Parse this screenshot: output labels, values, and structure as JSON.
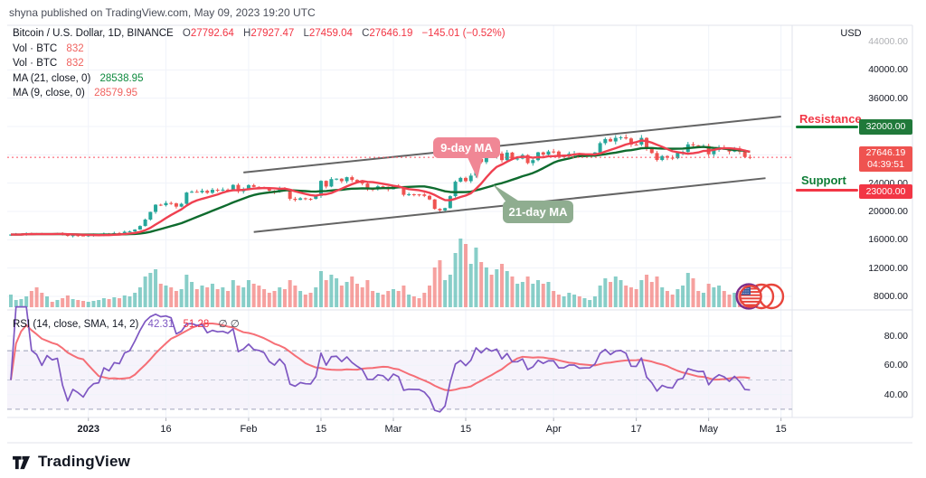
{
  "header": {
    "published_line": "shyna published on TradingView.com, May 09, 2023 19:20 UTC"
  },
  "legend": {
    "symbol": "Bitcoin / U.S. Dollar, 1D, BINANCE",
    "o_label": "O",
    "o": "27792.64",
    "h_label": "H",
    "h": "27927.47",
    "l_label": "L",
    "l": "27459.04",
    "c_label": "C",
    "c": "27646.19",
    "change": "−145.01 (−0.52%)",
    "vol_rows": [
      {
        "label": "Vol · BTC",
        "value": "832"
      },
      {
        "label": "Vol · BTC",
        "value": "832"
      }
    ],
    "ma_rows": [
      {
        "label": "MA (21, close, 0)",
        "value": "28538.95"
      },
      {
        "label": "MA (9, close, 0)",
        "value": "28579.95"
      }
    ]
  },
  "rsi_legend": {
    "label": "RSI (14, close, SMA, 14, 2)",
    "rsi_value": "42.31",
    "sma_value": "51.28",
    "extra": "∅ ∅"
  },
  "annotations": {
    "resistance_label": "Resistance",
    "support_label": "Support",
    "resistance_price": "32000.00",
    "support_price": "23000.00",
    "last_price": "27646.19",
    "countdown": "04:39:51",
    "ma9_callout": "9-day MA",
    "ma21_callout": "21-day MA"
  },
  "axis": {
    "currency": "USD",
    "price_ticks": [
      {
        "p": 44000,
        "label": "44000.00",
        "faint": true
      },
      {
        "p": 40000,
        "label": "40000.00"
      },
      {
        "p": 36000,
        "label": "36000.00"
      },
      {
        "p": 24000,
        "label": "24000.00"
      },
      {
        "p": 20000,
        "label": "20000.00"
      },
      {
        "p": 16000,
        "label": "16000.00"
      },
      {
        "p": 12000,
        "label": "12000.00"
      },
      {
        "p": 8000,
        "label": "8000.00"
      }
    ],
    "rsi_ticks": [
      {
        "v": 80,
        "label": "80.00"
      },
      {
        "v": 60,
        "label": "60.00"
      },
      {
        "v": 40,
        "label": "40.00"
      }
    ],
    "time_labels": [
      {
        "text": "2023",
        "bar": 15,
        "bold": true
      },
      {
        "text": "16",
        "bar": 30
      },
      {
        "text": "Feb",
        "bar": 46
      },
      {
        "text": "15",
        "bar": 60
      },
      {
        "text": "Mar",
        "bar": 74
      },
      {
        "text": "15",
        "bar": 88
      },
      {
        "text": "Apr",
        "bar": 105
      },
      {
        "text": "17",
        "bar": 121
      },
      {
        "text": "May",
        "bar": 135
      },
      {
        "text": "15",
        "bar": 149
      }
    ]
  },
  "footer": {
    "brand": "TradingView"
  },
  "colors": {
    "up": "#26a69a",
    "down": "#ef5350",
    "ma9": "#ef4050",
    "ma21": "#0e6b2e",
    "rsi": "#7e57c2",
    "rsi_sma": "#f55f67",
    "channel": "#4a4a4a",
    "grid": "#f0f3fa",
    "border": "#e0e3eb",
    "last_price_line": "#fb4f60",
    "resistance_text": "#f23645",
    "resistance_line": "#0e7d36",
    "support_text": "#0e7d36",
    "support_line": "#f23645",
    "callout_pink": "#f08795",
    "callout_green": "#8fad90"
  },
  "chart_data": {
    "type": "candlestick",
    "title": "Bitcoin / U.S. Dollar, 1D, BINANCE",
    "interval": "1D",
    "start_date": "2022-12-17",
    "price_axis_range": [
      6000,
      45000
    ],
    "rsi_axis_range": [
      20,
      100
    ],
    "last_ohlc": {
      "open": 27792.64,
      "high": 27927.47,
      "low": 27459.04,
      "close": 27646.19,
      "change": -145.01,
      "change_pct": -0.52
    },
    "support_level": 23000,
    "resistance_level": 32000,
    "closes": [
      16735,
      16740,
      16755,
      16900,
      16830,
      16820,
      16790,
      16845,
      16830,
      16840,
      16700,
      16550,
      16640,
      16600,
      16540,
      16620,
      16670,
      16680,
      16860,
      16830,
      16950,
      16940,
      17130,
      17180,
      17440,
      17940,
      18850,
      19930,
      20950,
      20880,
      21190,
      21140,
      20680,
      21080,
      22670,
      22780,
      22710,
      22920,
      22630,
      23060,
      23010,
      23080,
      23020,
      23750,
      22840,
      23130,
      23720,
      23470,
      23430,
      23330,
      22930,
      22760,
      23240,
      22960,
      21790,
      21630,
      21860,
      21780,
      21770,
      22200,
      24320,
      23520,
      24570,
      24630,
      24270,
      24840,
      24450,
      24180,
      23940,
      23180,
      23160,
      23550,
      23490,
      23140,
      23640,
      23460,
      22350,
      22430,
      22410,
      22400,
      22200,
      21700,
      20360,
      20150,
      20470,
      22160,
      24200,
      24740,
      24280,
      25060,
      27450,
      26970,
      28040,
      27760,
      28180,
      27250,
      28320,
      27450,
      27470,
      27960,
      26830,
      27250,
      28350,
      28030,
      28470,
      28460,
      27790,
      27800,
      28160,
      28170,
      27910,
      27940,
      27950,
      28330,
      29650,
      30230,
      29890,
      30400,
      30480,
      30310,
      29450,
      29440,
      30390,
      28820,
      28250,
      27270,
      27820,
      27590,
      27520,
      28300,
      28420,
      29480,
      29340,
      29230,
      29250,
      28080,
      28680,
      29030,
      28850,
      28460,
      28900,
      28450,
      27690,
      27646.19
    ],
    "volumes_relative": [
      14,
      8,
      9,
      12,
      18,
      22,
      16,
      12,
      6,
      8,
      10,
      13,
      9,
      8,
      7,
      6,
      7,
      8,
      10,
      9,
      11,
      10,
      13,
      12,
      16,
      22,
      34,
      38,
      42,
      26,
      24,
      22,
      18,
      20,
      36,
      28,
      20,
      24,
      22,
      26,
      20,
      22,
      18,
      30,
      24,
      22,
      30,
      26,
      24,
      20,
      16,
      18,
      22,
      20,
      30,
      24,
      18,
      14,
      16,
      22,
      40,
      30,
      36,
      32,
      24,
      28,
      34,
      26,
      22,
      30,
      18,
      16,
      14,
      18,
      20,
      18,
      24,
      14,
      12,
      10,
      16,
      24,
      44,
      52,
      30,
      36,
      60,
      76,
      70,
      48,
      66,
      50,
      44,
      36,
      42,
      48,
      40,
      34,
      26,
      28,
      34,
      26,
      30,
      26,
      28,
      18,
      14,
      12,
      16,
      14,
      12,
      10,
      8,
      12,
      24,
      32,
      28,
      34,
      30,
      24,
      22,
      20,
      30,
      36,
      28,
      34,
      22,
      18,
      14,
      20,
      24,
      38,
      32,
      18,
      16,
      26,
      22,
      24,
      18,
      14,
      16,
      18,
      24,
      10
    ],
    "ma_overlays": [
      {
        "period": 9,
        "last": 28579.95
      },
      {
        "period": 21,
        "last": 28538.95
      }
    ],
    "rsi": {
      "period": 14,
      "smoothing": "SMA 14",
      "last": 42.31,
      "sma_last": 51.28,
      "bands": [
        70,
        50,
        30
      ]
    },
    "channel": {
      "upper": {
        "bar1": 45,
        "p1": 25500,
        "bar2": 149,
        "p2": 33400
      },
      "lower": {
        "bar1": 47,
        "p1": 17100,
        "bar2": 146,
        "p2": 24700
      }
    }
  }
}
